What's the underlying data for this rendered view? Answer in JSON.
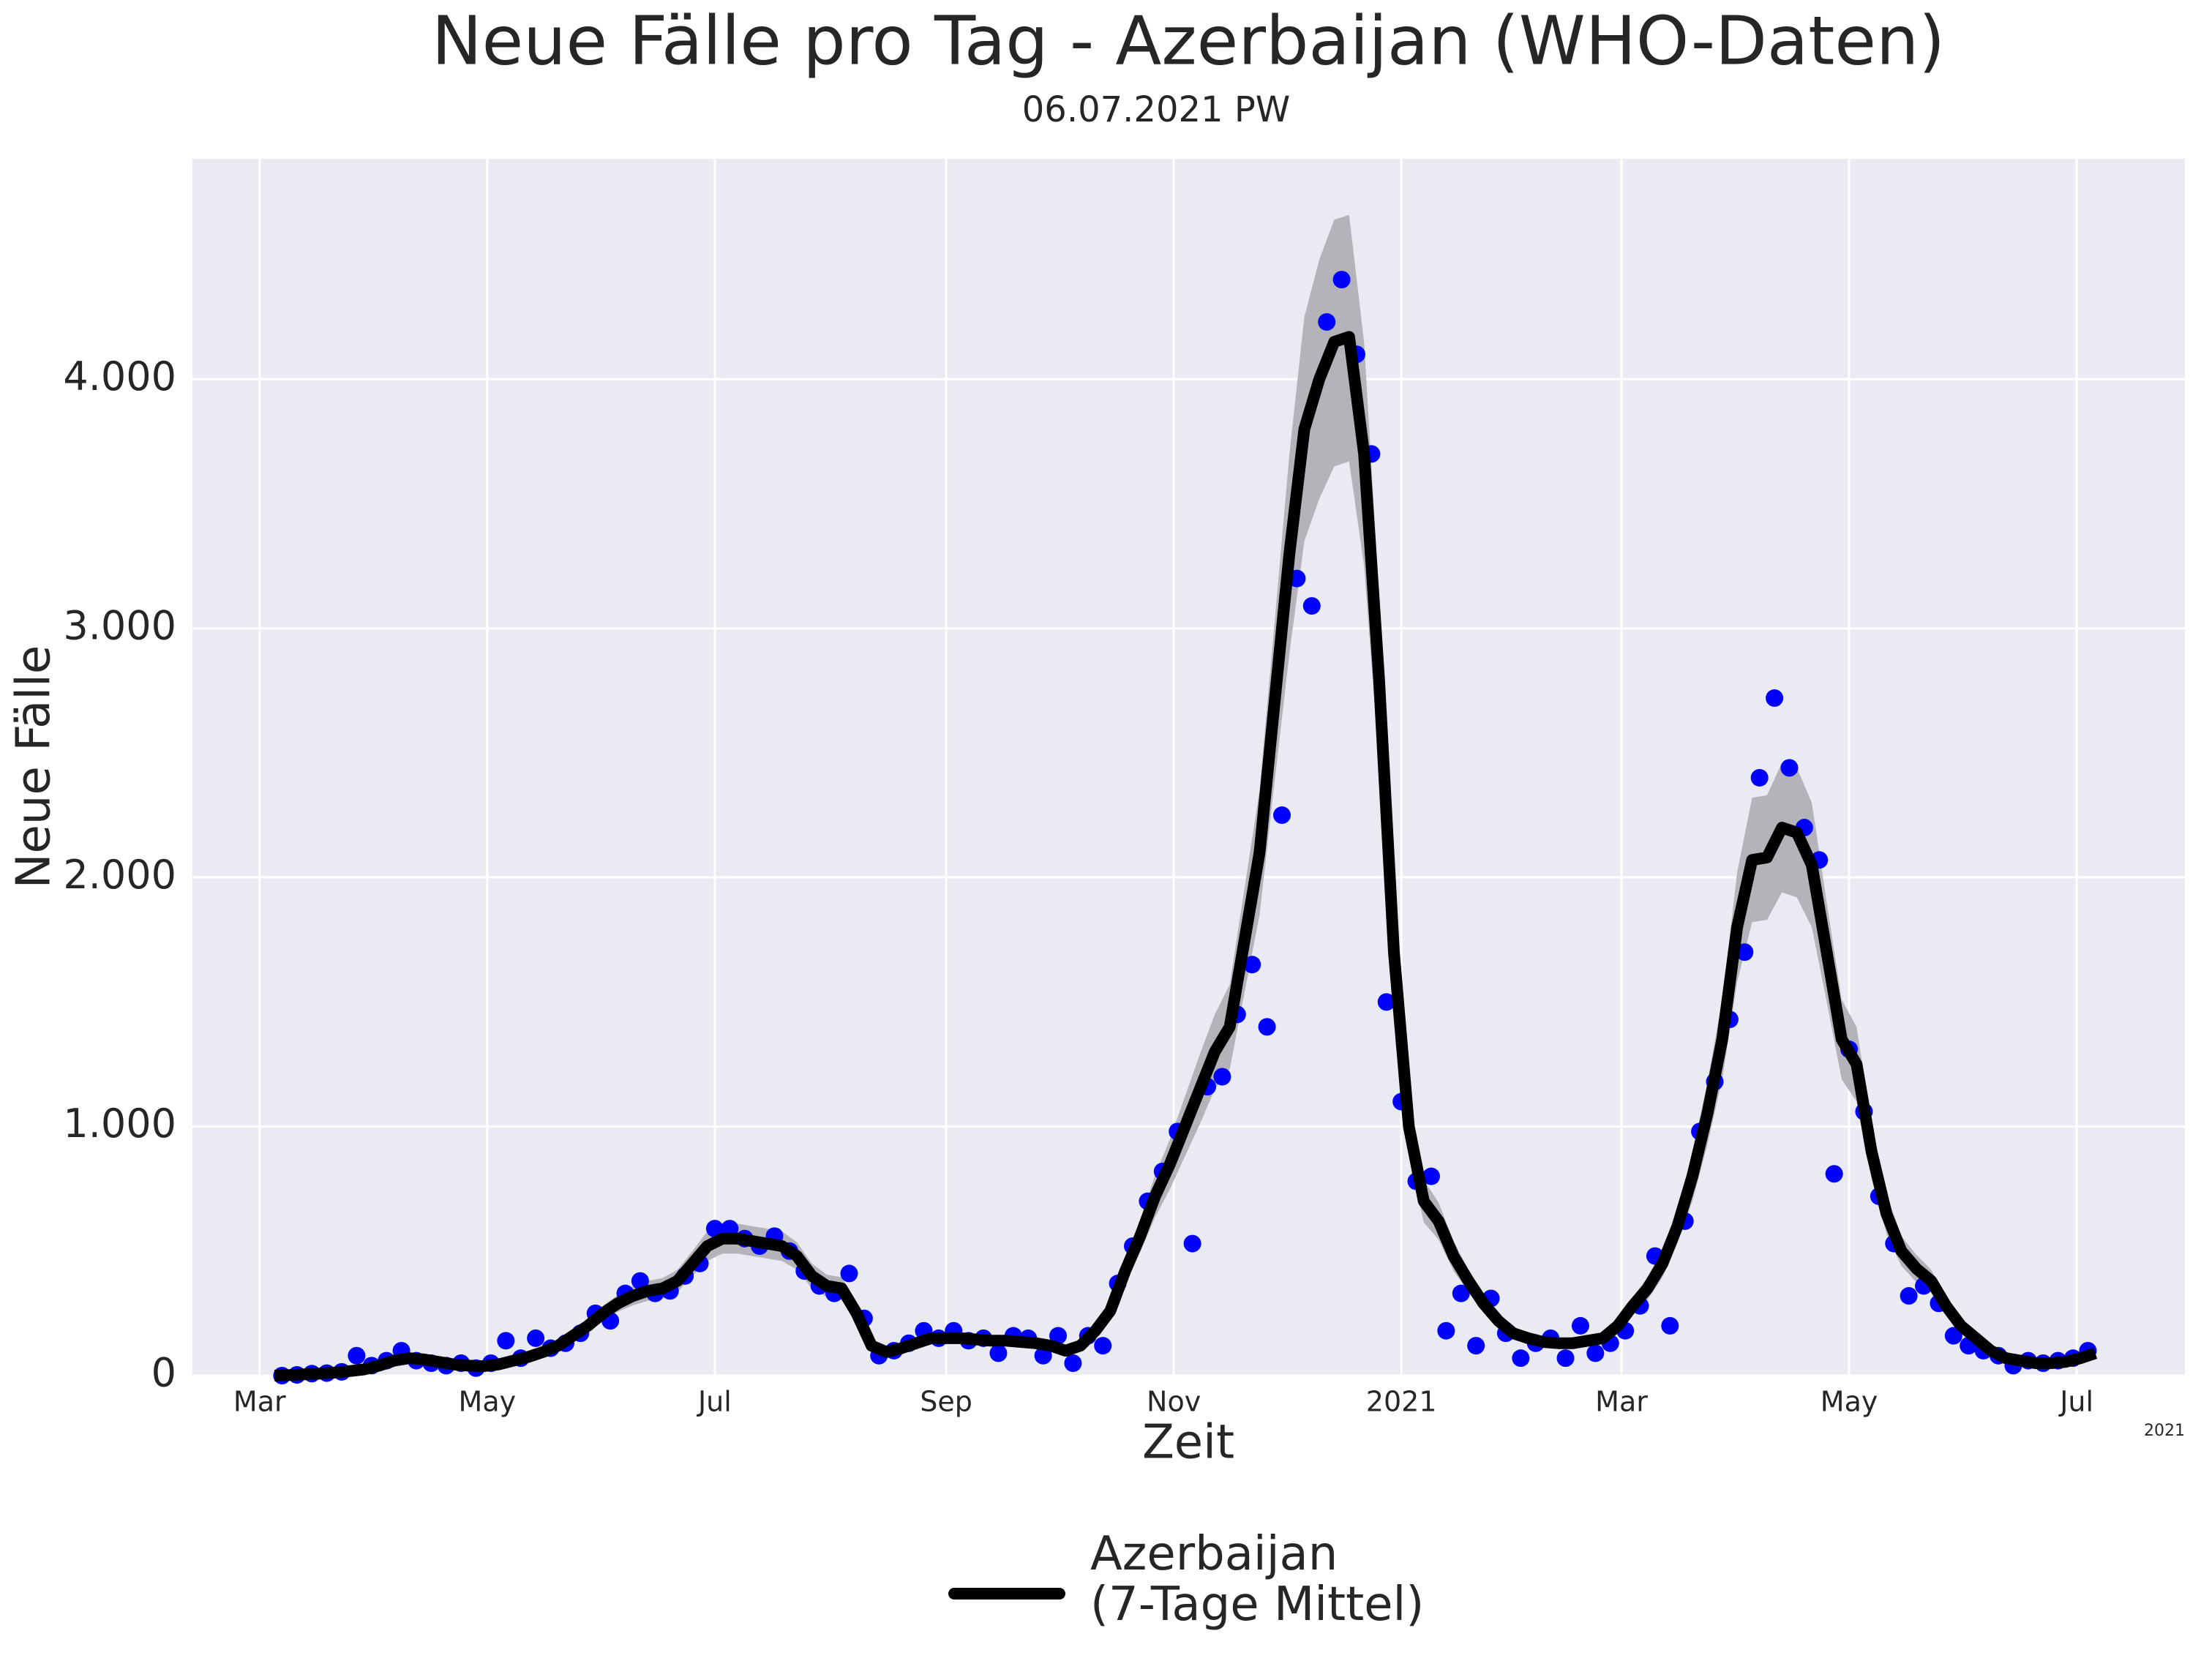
{
  "chart_data": {
    "type": "line",
    "title": "Neue Fälle pro Tag - Azerbaijan (WHO-Daten)",
    "subtitle": "06.07.2021 PW",
    "x_label": "Zeit",
    "y_label": "Neue Fälle",
    "x_offset_label": "2021",
    "xlim": [
      -18,
      516
    ],
    "ylim": [
      0,
      4885
    ],
    "xticks": [
      {
        "value": 0,
        "label": "Mar"
      },
      {
        "value": 61,
        "label": "May"
      },
      {
        "value": 122,
        "label": "Jul"
      },
      {
        "value": 184,
        "label": "Sep"
      },
      {
        "value": 245,
        "label": "Nov"
      },
      {
        "value": 306,
        "label": "2021"
      },
      {
        "value": 365,
        "label": "Mar"
      },
      {
        "value": 426,
        "label": "May"
      },
      {
        "value": 487,
        "label": "Jul"
      }
    ],
    "yticks": [
      0,
      {
        "value": 1000,
        "label": "1.000"
      },
      {
        "value": 2000,
        "label": "2.000"
      },
      {
        "value": 3000,
        "label": "3.000"
      },
      {
        "value": 4000,
        "label": "4.000"
      }
    ],
    "grid": true,
    "background": "#eaeaf2",
    "legend": "bottom",
    "series": [
      {
        "name": "Azerbaijan\n(7-Tage Mittel)",
        "color": "#000000",
        "x": [
          4,
          8,
          12,
          16,
          20,
          24,
          28,
          32,
          36,
          40,
          44,
          48,
          52,
          56,
          60,
          64,
          68,
          72,
          76,
          80,
          84,
          88,
          92,
          96,
          100,
          104,
          108,
          112,
          116,
          120,
          124,
          128,
          132,
          136,
          140,
          144,
          148,
          152,
          156,
          160,
          164,
          168,
          172,
          176,
          180,
          184,
          188,
          192,
          196,
          200,
          204,
          208,
          212,
          216,
          220,
          224,
          228,
          232,
          236,
          240,
          244,
          248,
          252,
          256,
          260,
          264,
          268,
          272,
          276,
          280,
          284,
          288,
          292,
          296,
          300,
          304,
          308,
          312,
          316,
          320,
          324,
          328,
          332,
          336,
          340,
          344,
          348,
          352,
          356,
          360,
          364,
          368,
          372,
          376,
          380,
          384,
          388,
          392,
          396,
          400,
          404,
          408,
          412,
          416,
          420,
          424,
          428,
          432,
          436,
          440,
          444,
          448,
          452,
          456,
          460,
          464,
          468,
          472,
          476,
          480,
          484,
          488,
          492
        ],
        "values": [
          0,
          2,
          5,
          8,
          12,
          18,
          25,
          40,
          60,
          70,
          65,
          55,
          45,
          40,
          38,
          45,
          60,
          75,
          95,
          120,
          160,
          200,
          250,
          290,
          320,
          340,
          350,
          380,
          450,
          520,
          550,
          550,
          540,
          530,
          520,
          480,
          400,
          360,
          350,
          250,
          120,
          95,
          110,
          130,
          150,
          150,
          150,
          145,
          140,
          140,
          135,
          130,
          120,
          100,
          120,
          180,
          260,
          420,
          560,
          720,
          850,
          1000,
          1150,
          1300,
          1400,
          1750,
          2100,
          2700,
          3300,
          3800,
          4000,
          4150,
          4170,
          3700,
          2800,
          1700,
          1000,
          700,
          620,
          480,
          380,
          290,
          220,
          170,
          150,
          135,
          130,
          130,
          140,
          150,
          200,
          280,
          350,
          450,
          600,
          800,
          1050,
          1350,
          1800,
          2070,
          2080,
          2200,
          2180,
          2050,
          1700,
          1350,
          1250,
          900,
          650,
          500,
          430,
          380,
          280,
          200,
          150,
          100,
          70,
          60,
          50,
          50,
          55,
          70,
          90
        ]
      }
    ],
    "band": {
      "color": "#b3b3b9",
      "x": [
        4,
        8,
        12,
        16,
        20,
        24,
        28,
        32,
        36,
        40,
        44,
        48,
        52,
        56,
        60,
        64,
        68,
        72,
        76,
        80,
        84,
        88,
        92,
        96,
        100,
        104,
        108,
        112,
        116,
        120,
        124,
        128,
        132,
        136,
        140,
        144,
        148,
        152,
        156,
        160,
        164,
        168,
        172,
        176,
        180,
        184,
        188,
        192,
        196,
        200,
        204,
        208,
        212,
        216,
        220,
        224,
        228,
        232,
        236,
        240,
        244,
        248,
        252,
        256,
        260,
        264,
        268,
        272,
        276,
        280,
        284,
        288,
        292,
        296,
        300,
        304,
        308,
        312,
        316,
        320,
        324,
        328,
        332,
        336,
        340,
        344,
        348,
        352,
        356,
        360,
        364,
        368,
        372,
        376,
        380,
        384,
        388,
        392,
        396,
        400,
        404,
        408,
        412,
        416,
        420,
        424,
        428,
        432,
        436,
        440,
        444,
        448,
        452,
        456,
        460,
        464,
        468,
        472,
        476,
        480,
        484,
        488,
        492
      ],
      "lower": [
        0,
        0,
        2,
        5,
        8,
        12,
        18,
        30,
        48,
        58,
        54,
        46,
        38,
        33,
        31,
        38,
        50,
        64,
        82,
        104,
        140,
        176,
        220,
        256,
        282,
        300,
        308,
        335,
        400,
        460,
        490,
        490,
        480,
        470,
        460,
        425,
        350,
        315,
        305,
        215,
        100,
        78,
        90,
        110,
        128,
        128,
        128,
        123,
        118,
        118,
        114,
        110,
        100,
        82,
        100,
        155,
        225,
        370,
        495,
        635,
        750,
        880,
        1010,
        1150,
        1230,
        1540,
        1850,
        2380,
        2900,
        3350,
        3520,
        3650,
        3670,
        3250,
        2460,
        1500,
        880,
        615,
        545,
        420,
        335,
        255,
        190,
        150,
        130,
        115,
        110,
        110,
        120,
        130,
        175,
        245,
        305,
        395,
        530,
        700,
        925,
        1190,
        1580,
        1820,
        1830,
        1940,
        1920,
        1800,
        1500,
        1190,
        1100,
        790,
        570,
        440,
        375,
        335,
        245,
        175,
        130,
        85,
        60,
        50,
        42,
        42,
        45,
        60,
        75
      ],
      "upper": [
        5,
        5,
        8,
        12,
        16,
        24,
        32,
        50,
        72,
        82,
        76,
        64,
        52,
        47,
        45,
        52,
        70,
        86,
        108,
        136,
        180,
        224,
        280,
        324,
        358,
        380,
        392,
        425,
        500,
        580,
        610,
        610,
        600,
        590,
        580,
        535,
        450,
        405,
        395,
        285,
        140,
        112,
        130,
        152,
        172,
        172,
        172,
        167,
        160,
        160,
        156,
        150,
        140,
        118,
        140,
        205,
        295,
        470,
        625,
        805,
        950,
        1120,
        1290,
        1450,
        1570,
        1960,
        2350,
        3020,
        3700,
        4250,
        4480,
        4640,
        4660,
        4150,
        3140,
        1900,
        1120,
        785,
        695,
        540,
        425,
        325,
        250,
        192,
        170,
        155,
        150,
        150,
        160,
        172,
        225,
        315,
        395,
        505,
        670,
        895,
        1175,
        1510,
        2020,
        2320,
        2330,
        2460,
        2440,
        2300,
        1900,
        1510,
        1400,
        1010,
        730,
        560,
        485,
        425,
        315,
        225,
        170,
        115,
        80,
        70,
        58,
        58,
        63,
        80,
        102
      ]
    },
    "points": {
      "color": "#0000ff",
      "x": [
        6,
        10,
        14,
        18,
        22,
        26,
        30,
        34,
        38,
        42,
        46,
        50,
        54,
        58,
        62,
        66,
        70,
        74,
        78,
        82,
        86,
        90,
        94,
        98,
        102,
        106,
        110,
        114,
        118,
        122,
        126,
        130,
        134,
        138,
        142,
        146,
        150,
        154,
        158,
        162,
        166,
        170,
        174,
        178,
        182,
        186,
        190,
        194,
        198,
        202,
        206,
        210,
        214,
        218,
        222,
        226,
        230,
        234,
        238,
        242,
        246,
        250,
        254,
        258,
        262,
        266,
        270,
        274,
        278,
        282,
        286,
        290,
        294,
        298,
        302,
        306,
        310,
        314,
        318,
        322,
        326,
        330,
        334,
        338,
        342,
        346,
        350,
        354,
        358,
        362,
        366,
        370,
        374,
        378,
        382,
        386,
        390,
        394,
        398,
        402,
        406,
        410,
        414,
        418,
        422,
        426,
        430,
        434,
        438,
        442,
        446,
        450,
        454,
        458,
        462,
        466,
        470,
        474,
        478,
        482,
        486,
        490
      ],
      "values": [
        0,
        3,
        8,
        10,
        15,
        80,
        40,
        60,
        100,
        60,
        50,
        40,
        50,
        30,
        50,
        140,
        70,
        150,
        110,
        130,
        170,
        250,
        220,
        330,
        380,
        330,
        340,
        400,
        450,
        590,
        590,
        550,
        520,
        560,
        500,
        420,
        360,
        330,
        410,
        230,
        80,
        100,
        130,
        180,
        150,
        180,
        140,
        150,
        90,
        160,
        150,
        80,
        160,
        50,
        160,
        120,
        370,
        520,
        700,
        820,
        980,
        530,
        1160,
        1200,
        1450,
        1650,
        1400,
        2250,
        3200,
        3090,
        4230,
        4400,
        4100,
        3700,
        1500,
        1100,
        780,
        800,
        180,
        330,
        120,
        310,
        170,
        70,
        130,
        150,
        70,
        200,
        90,
        130,
        180,
        280,
        480,
        200,
        620,
        980,
        1180,
        1430,
        1700,
        2400,
        2720,
        2440,
        2200,
        2070,
        810,
        1310,
        1060,
        720,
        530,
        320,
        360,
        290,
        160,
        120,
        100,
        80,
        40,
        60,
        50,
        60,
        70,
        100
      ]
    }
  }
}
